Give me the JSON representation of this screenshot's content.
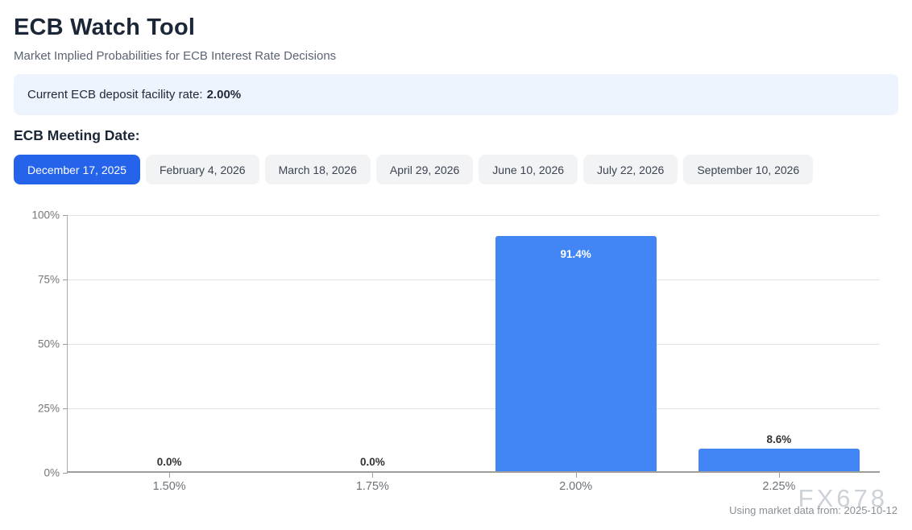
{
  "header": {
    "title": "ECB Watch Tool",
    "subtitle": "Market Implied Probabilities for ECB Interest Rate Decisions"
  },
  "banner": {
    "label": "Current ECB deposit facility rate:",
    "value": "2.00%"
  },
  "meeting_dates": {
    "heading": "ECB Meeting Date:",
    "selected": "December 17, 2025",
    "tabs": [
      {
        "label": "December 17, 2025",
        "selected": true
      },
      {
        "label": "February 4, 2026",
        "selected": false
      },
      {
        "label": "March 18, 2026",
        "selected": false
      },
      {
        "label": "April 29, 2026",
        "selected": false
      },
      {
        "label": "June 10, 2026",
        "selected": false
      },
      {
        "label": "July 22, 2026",
        "selected": false
      },
      {
        "label": "September 10, 2026",
        "selected": false
      }
    ]
  },
  "chart_data": {
    "type": "bar",
    "title": "",
    "xlabel": "",
    "ylabel": "",
    "categories": [
      "1.50%",
      "1.75%",
      "2.00%",
      "2.25%"
    ],
    "values": [
      0.0,
      0.0,
      91.4,
      8.6
    ],
    "value_labels": [
      "0.0%",
      "0.0%",
      "91.4%",
      "8.6%"
    ],
    "y_ticks": [
      "0%",
      "25%",
      "50%",
      "75%",
      "100%"
    ],
    "ylim": [
      0,
      100
    ],
    "grid": true,
    "legend": "none",
    "bar_color": "#4285f4"
  },
  "footer": {
    "note": "Using market data from: 2025-10-12",
    "watermark": "FX678"
  },
  "colors": {
    "selected_tab_blue": "#2563eb",
    "bar_blue": "#4285f4",
    "banner_bg": "#edf4fe"
  }
}
